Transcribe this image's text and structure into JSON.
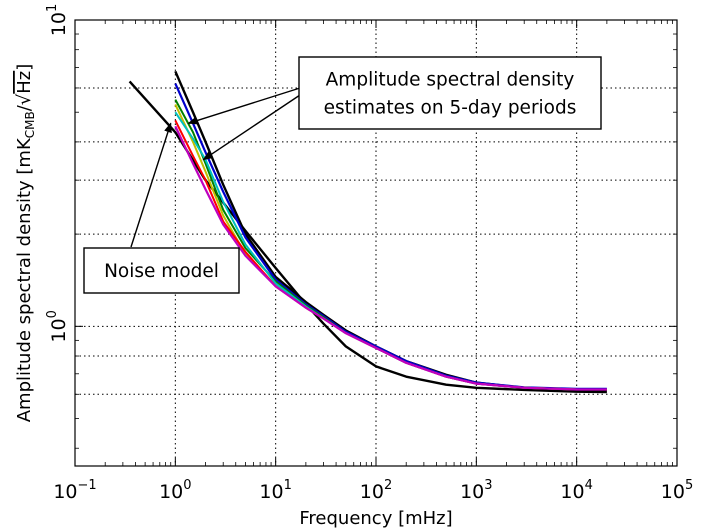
{
  "chart_data": {
    "type": "line",
    "title": "",
    "xlabel": "Frequency [mHz]",
    "ylabel": "Amplitude spectral density [mK",
    "ylabel_sub": "CMB",
    "ylabel_tail": "/√",
    "ylabel_sqrt": "Hz",
    "ylabel_close": "]",
    "x_scale": "log",
    "y_scale": "log",
    "xlim": [
      0.1,
      100000
    ],
    "ylim": [
      0.35,
      10
    ],
    "grid": true,
    "x_ticks": [
      {
        "value": 0.1,
        "base": "10",
        "exp": "−1"
      },
      {
        "value": 1,
        "base": "10",
        "exp": "0"
      },
      {
        "value": 10,
        "base": "10",
        "exp": "1"
      },
      {
        "value": 100,
        "base": "10",
        "exp": "2"
      },
      {
        "value": 1000,
        "base": "10",
        "exp": "3"
      },
      {
        "value": 10000,
        "base": "10",
        "exp": "4"
      },
      {
        "value": 100000,
        "base": "10",
        "exp": "5"
      }
    ],
    "y_ticks": [
      {
        "value": 1,
        "base": "10",
        "exp": "0"
      },
      {
        "value": 10,
        "base": "10",
        "exp": "1"
      }
    ],
    "series": [
      {
        "color": "#000000",
        "style": "solid",
        "width": 2.4,
        "x": [
          0.35,
          1,
          2,
          5,
          10,
          20,
          30,
          50,
          100,
          200,
          500,
          1000,
          3000,
          10000,
          20000
        ],
        "y": [
          6.3,
          4.3,
          3.0,
          2.05,
          1.55,
          1.18,
          1.02,
          0.86,
          0.74,
          0.685,
          0.645,
          0.63,
          0.62,
          0.612,
          0.61
        ]
      },
      {
        "color": "#000000",
        "style": "solid",
        "width": 2.4,
        "x": [
          1,
          1.5,
          2,
          3,
          5,
          10,
          20,
          30,
          50,
          100,
          200,
          500,
          1000,
          3000,
          10000,
          20000
        ],
        "y": [
          6.8,
          5.0,
          4.0,
          2.9,
          2.0,
          1.45,
          1.2,
          1.09,
          0.97,
          0.86,
          0.77,
          0.695,
          0.655,
          0.63,
          0.62,
          0.62
        ]
      },
      {
        "color": "#0000cc",
        "style": "solid",
        "width": 2.2,
        "x": [
          1,
          1.5,
          2,
          3,
          5,
          10,
          20,
          30,
          50,
          100,
          200,
          500,
          1000,
          3000,
          10000,
          20000
        ],
        "y": [
          6.2,
          4.6,
          3.7,
          2.75,
          1.95,
          1.42,
          1.18,
          1.08,
          0.96,
          0.86,
          0.77,
          0.69,
          0.655,
          0.632,
          0.625,
          0.625
        ]
      },
      {
        "color": "#008000",
        "style": "solid",
        "width": 2.0,
        "x": [
          1,
          1.5,
          2,
          3,
          5,
          10,
          20,
          30,
          50,
          100,
          200,
          500,
          1000,
          3000,
          10000,
          20000
        ],
        "y": [
          5.5,
          4.3,
          3.4,
          2.4,
          1.8,
          1.4,
          1.17,
          1.07,
          0.95,
          0.85,
          0.76,
          0.685,
          0.65,
          0.63,
          0.622,
          0.622
        ]
      },
      {
        "color": "#bfbf00",
        "style": "solid",
        "width": 2.0,
        "x": [
          1,
          1.5,
          2,
          3,
          5,
          10,
          20,
          30,
          50,
          100,
          200,
          500,
          1000,
          3000,
          10000,
          20000
        ],
        "y": [
          5.3,
          4.0,
          3.2,
          2.3,
          1.72,
          1.36,
          1.15,
          1.06,
          0.95,
          0.85,
          0.76,
          0.685,
          0.65,
          0.63,
          0.622,
          0.622
        ]
      },
      {
        "color": "#00bfbf",
        "style": "solid",
        "width": 2.0,
        "x": [
          1,
          1.5,
          2,
          3,
          5,
          10,
          20,
          30,
          50,
          100,
          200,
          500,
          1000,
          3000,
          10000,
          20000
        ],
        "y": [
          5.0,
          4.1,
          3.5,
          2.55,
          1.85,
          1.38,
          1.16,
          1.06,
          0.95,
          0.85,
          0.76,
          0.685,
          0.65,
          0.63,
          0.622,
          0.622
        ]
      },
      {
        "color": "#ff0000",
        "style": "solid",
        "width": 2.0,
        "x": [
          1,
          1.5,
          2,
          3,
          5,
          10,
          20,
          30,
          50,
          100,
          200,
          500,
          1000,
          3000,
          10000,
          20000
        ],
        "y": [
          4.7,
          3.6,
          3.0,
          2.2,
          1.75,
          1.35,
          1.15,
          1.06,
          0.95,
          0.85,
          0.76,
          0.685,
          0.65,
          0.63,
          0.622,
          0.622
        ]
      },
      {
        "color": "#bf00bf",
        "style": "solid",
        "width": 2.2,
        "x": [
          1,
          1.5,
          2,
          3,
          5,
          10,
          20,
          30,
          50,
          100,
          200,
          500,
          1000,
          3000,
          10000,
          20000
        ],
        "y": [
          4.5,
          3.4,
          2.8,
          2.15,
          1.7,
          1.35,
          1.15,
          1.06,
          0.95,
          0.85,
          0.76,
          0.685,
          0.65,
          0.63,
          0.622,
          0.622
        ]
      }
    ],
    "annotations": [
      {
        "lines": [
          "Amplitude spectral density",
          "estimates on 5-day periods"
        ],
        "arrow_targets": [
          {
            "x": 1.35,
            "y": 4.6
          },
          {
            "x": 1.9,
            "y": 3.5
          }
        ]
      },
      {
        "lines": [
          "Noise model"
        ],
        "arrow_targets": [
          {
            "x": 0.9,
            "y": 4.6
          }
        ]
      }
    ]
  }
}
